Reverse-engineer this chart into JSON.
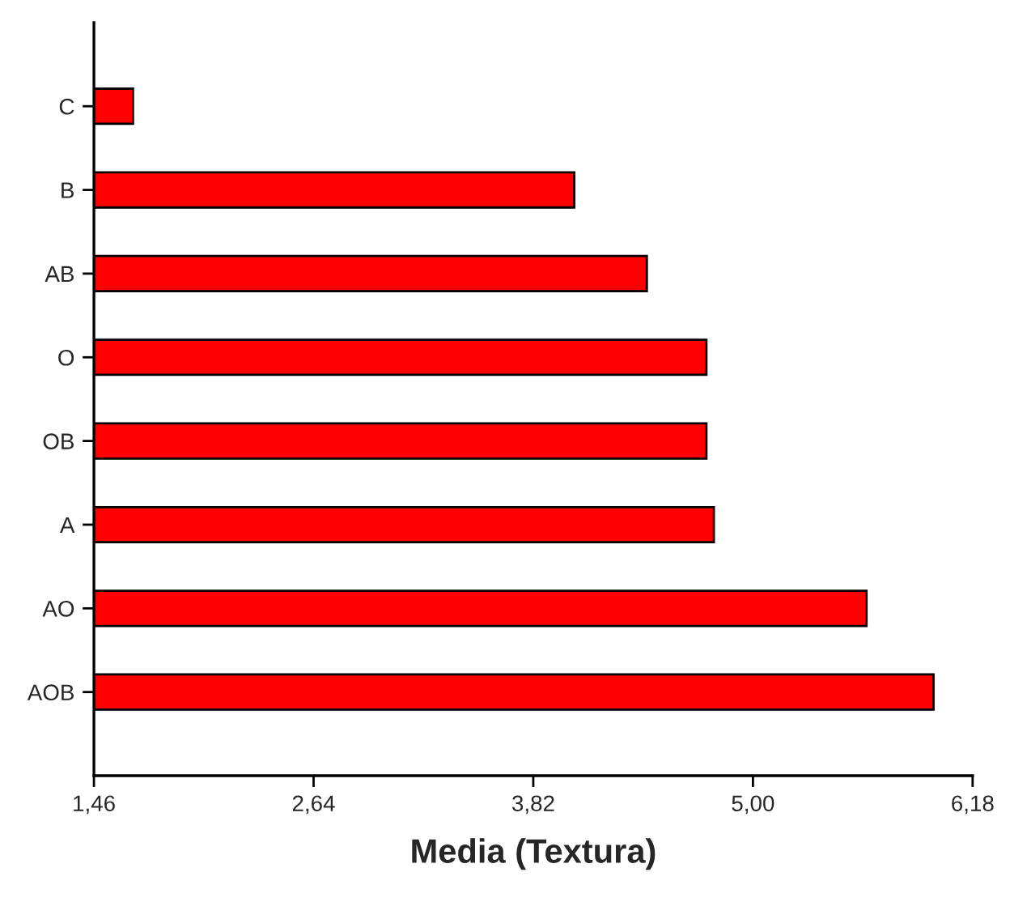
{
  "chart_data": {
    "type": "bar",
    "orientation": "horizontal",
    "xlabel": "Media (Textura)",
    "categories": [
      "C",
      "B",
      "AB",
      "O",
      "OB",
      "A",
      "AO",
      "AOB"
    ],
    "values": [
      1.67,
      4.04,
      4.43,
      4.75,
      4.75,
      4.79,
      5.61,
      5.97
    ],
    "color": "#ff0000",
    "xlim": [
      1.46,
      6.18
    ],
    "xticks": [
      {
        "value": 1.46,
        "label": "1,46"
      },
      {
        "value": 2.64,
        "label": "2,64"
      },
      {
        "value": 3.82,
        "label": "3,82"
      },
      {
        "value": 5.0,
        "label": "5,00"
      },
      {
        "value": 6.18,
        "label": "6,18"
      }
    ],
    "grid": false,
    "legend": false
  }
}
